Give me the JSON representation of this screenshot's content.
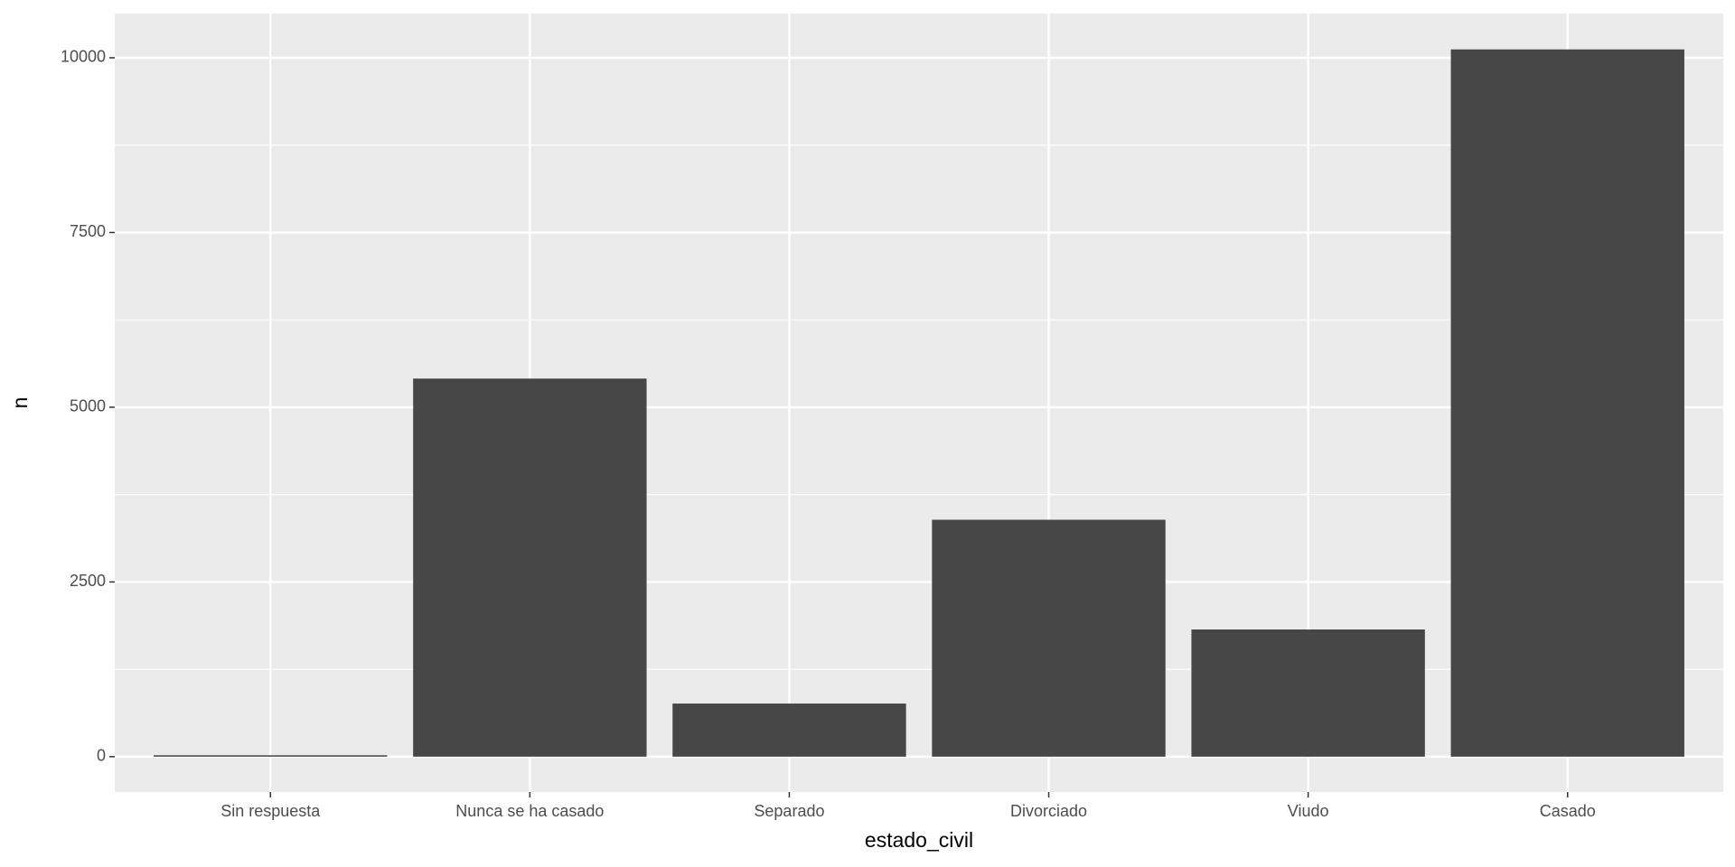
{
  "chart_data": {
    "type": "bar",
    "x_label": "estado_civil",
    "y_label": "n",
    "categories": [
      "Sin respuesta",
      "Nunca se ha casado",
      "Separado",
      "Divorciado",
      "Viudo",
      "Casado"
    ],
    "values": [
      20,
      5410,
      760,
      3390,
      1820,
      10120
    ],
    "color": "#474747",
    "ylim": [
      -506,
      10633
    ],
    "yticks": [
      0,
      2500,
      5000,
      7500,
      10000
    ],
    "y_minor_ticks": [
      1250,
      3750,
      6250,
      8750
    ],
    "grid": true
  }
}
